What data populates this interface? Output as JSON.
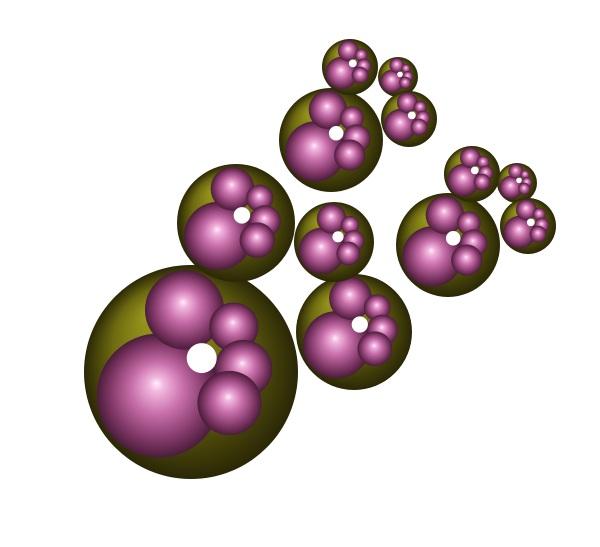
{
  "scene": {
    "background": "#ffffff",
    "colors": {
      "olive_highlight": "#9a9a1c",
      "olive_mid": "#6d6a10",
      "olive_shadow": "#2a2706",
      "pink_highlight": "#fff0fb",
      "pink_mid": "#c76ea9",
      "pink_shadow": "#4a1d3a"
    }
  }
}
